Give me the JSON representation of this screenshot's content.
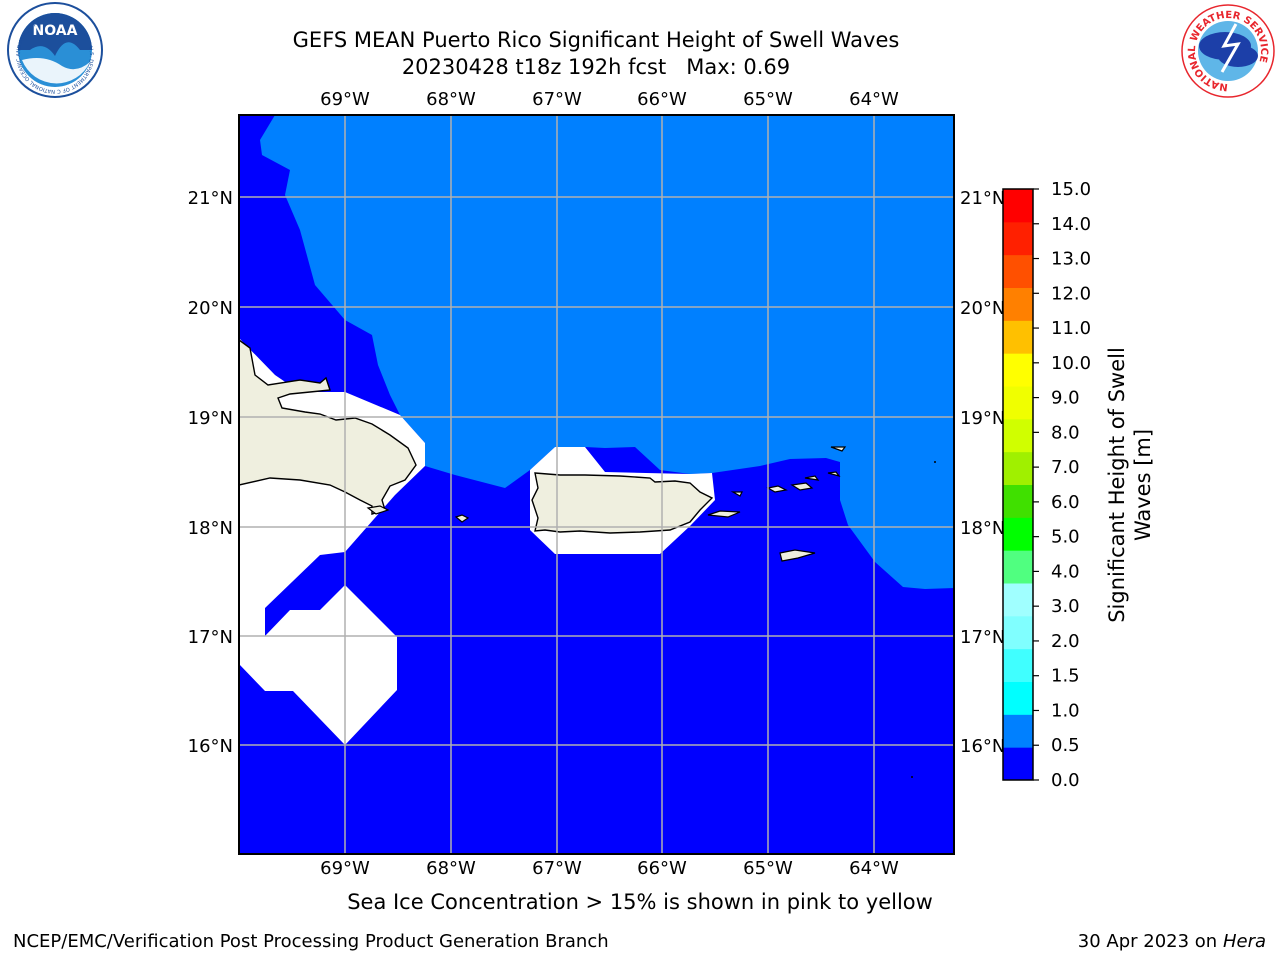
{
  "header": {
    "title_line1": "GEFS MEAN Puerto Rico Significant Height of Swell Waves",
    "title_line2": "20230428 t18z 192h fcst   Max: 0.69"
  },
  "logos": {
    "noaa": {
      "text": "NOAA",
      "ring_text": "NATIONAL OCEANIC AND ATMOSPHERIC ADMINISTRATION • U.S. DEPARTMENT OF COMMERCE •",
      "colors": [
        "#1c4f9c",
        "#2a8fd6",
        "#ffffff"
      ]
    },
    "nws": {
      "ring_text": "NATIONAL WEATHER SERVICE",
      "colors": [
        "#e8262d",
        "#1c3fa8",
        "#5fb6e8"
      ]
    }
  },
  "map": {
    "lon_labels": [
      "69°W",
      "68°W",
      "67°W",
      "66°W",
      "65°W",
      "64°W"
    ],
    "lat_labels": [
      "21°N",
      "20°N",
      "19°N",
      "18°N",
      "17°N",
      "16°N"
    ],
    "colors": {
      "band_0_0_5": "#0000ff",
      "band_0_5_1_0": "#0080ff",
      "land": "#efefdf",
      "nodata": "#ffffff",
      "grid": "#b0b0b0"
    }
  },
  "colorbar": {
    "label_line1": "Significant Height of Swell",
    "label_line2": "Waves [m]",
    "ticks": [
      "0.0",
      "0.5",
      "1.0",
      "1.5",
      "2.0",
      "3.0",
      "4.0",
      "5.0",
      "6.0",
      "7.0",
      "8.0",
      "9.0",
      "10.0",
      "11.0",
      "12.0",
      "13.0",
      "14.0",
      "15.0"
    ],
    "colors": [
      "#0000ff",
      "#0080ff",
      "#00ffff",
      "#40ffff",
      "#80ffff",
      "#a0ffff",
      "#50ff80",
      "#00ff00",
      "#40e000",
      "#a0f000",
      "#d0ff00",
      "#f0ff00",
      "#ffff00",
      "#ffc000",
      "#ff8000",
      "#ff5000",
      "#ff2000",
      "#ff0000"
    ]
  },
  "notes": {
    "sea_ice": "Sea Ice Concentration > 15% is shown in pink to yellow",
    "footer_left": "NCEP/EMC/Verification Post Processing Product Generation Branch",
    "footer_date": "30 Apr 2023 on ",
    "footer_host": "Hera"
  }
}
